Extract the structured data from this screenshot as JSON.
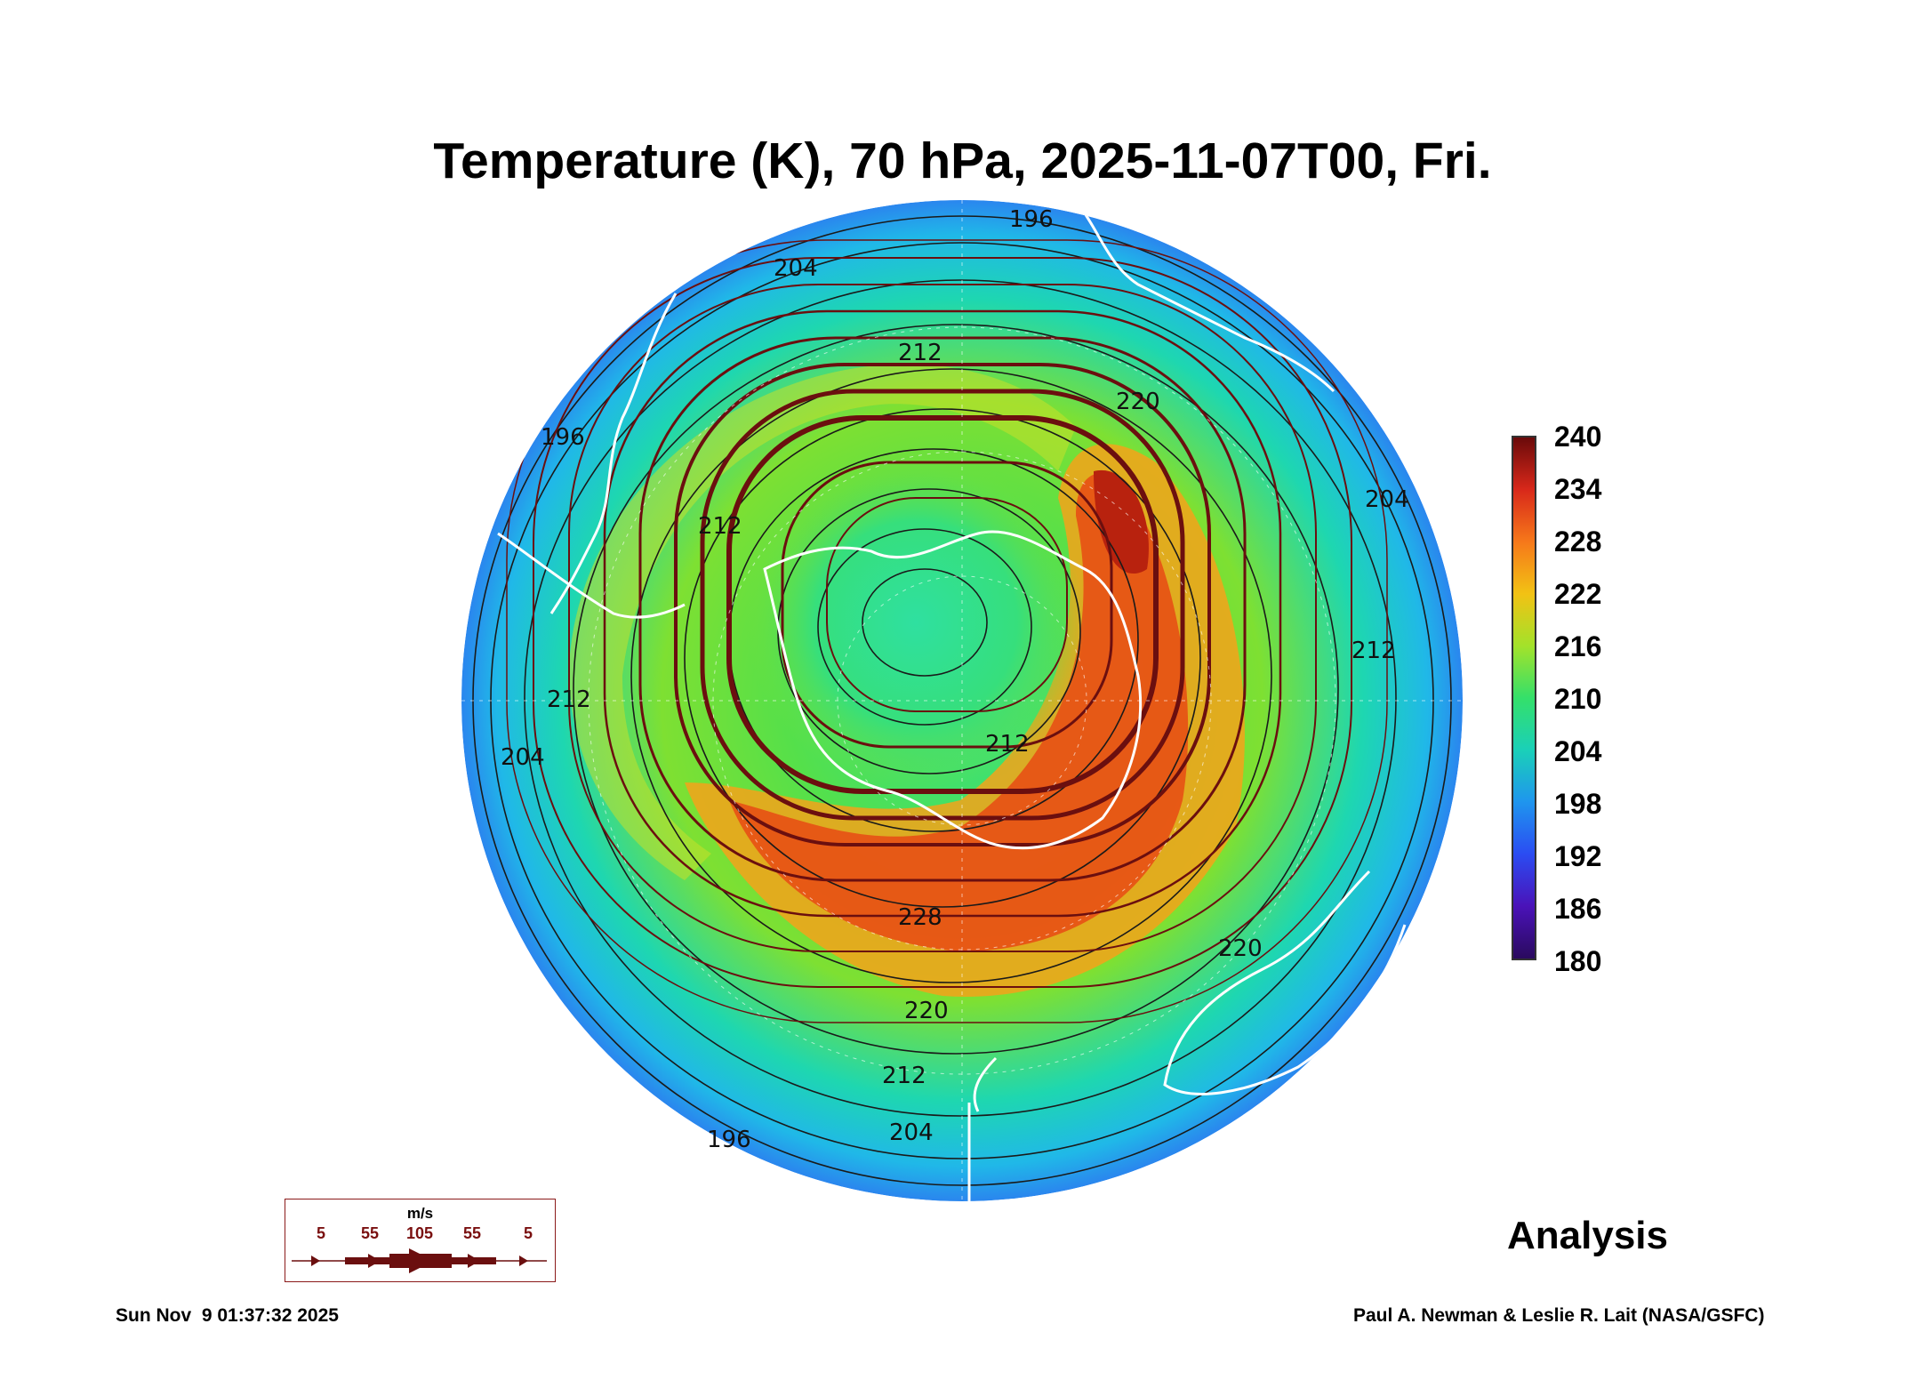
{
  "title": "Temperature (K), 70 hPa, 2025-11-07T00, Fri.",
  "colorbar": {
    "labels": [
      "240",
      "234",
      "228",
      "222",
      "216",
      "210",
      "204",
      "198",
      "192",
      "186",
      "180"
    ]
  },
  "contour_labels": {
    "c196": "196",
    "c204": "204",
    "c212": "212",
    "c220": "220",
    "c228": "228"
  },
  "wind_legend": {
    "unit": "m/s",
    "values": [
      "5",
      "55",
      "105",
      "55",
      "5"
    ]
  },
  "analysis_label": "Analysis",
  "footer": {
    "timestamp": "Sun Nov  9 01:37:32 2025",
    "credit": "Paul A. Newman & Leslie R. Lait (NASA/GSFC)"
  },
  "colors": {
    "streamline": "#6b0f0f",
    "coast": "#ffffff",
    "contour": "#1a1a1a"
  }
}
